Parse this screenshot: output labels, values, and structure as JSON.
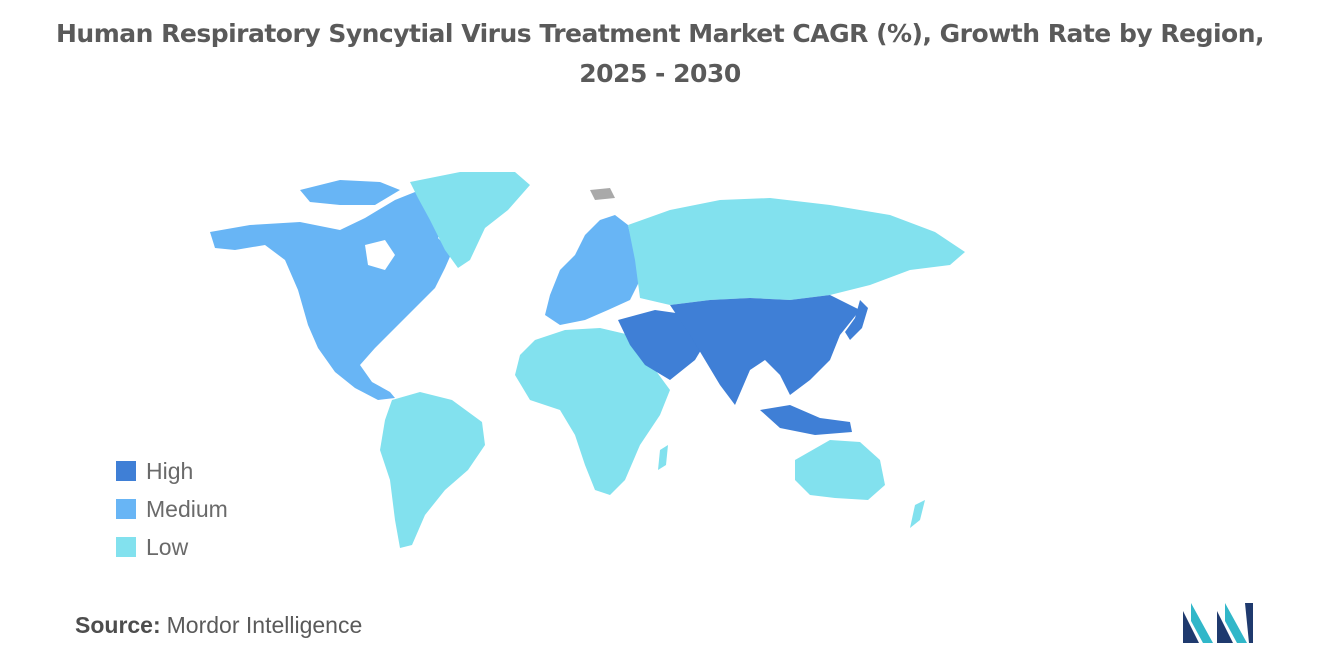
{
  "title_line1": "Human Respiratory Syncytial Virus Treatment Market CAGR (%), Growth Rate by Region,",
  "title_line2": "2025 - 2030",
  "legend": [
    {
      "label": "High",
      "color": "#3f7fd6"
    },
    {
      "label": "Medium",
      "color": "#68b5f5"
    },
    {
      "label": "Low",
      "color": "#82e1ee"
    }
  ],
  "regions": {
    "north_america": "Medium",
    "europe": "Medium",
    "asia_pacific": "High",
    "middle_east": "High",
    "russia": "Low",
    "greenland": "Low",
    "south_america": "Low",
    "africa": "Low",
    "oceania": "Low"
  },
  "source_label": "Source:",
  "source_value": "Mordor Intelligence"
}
